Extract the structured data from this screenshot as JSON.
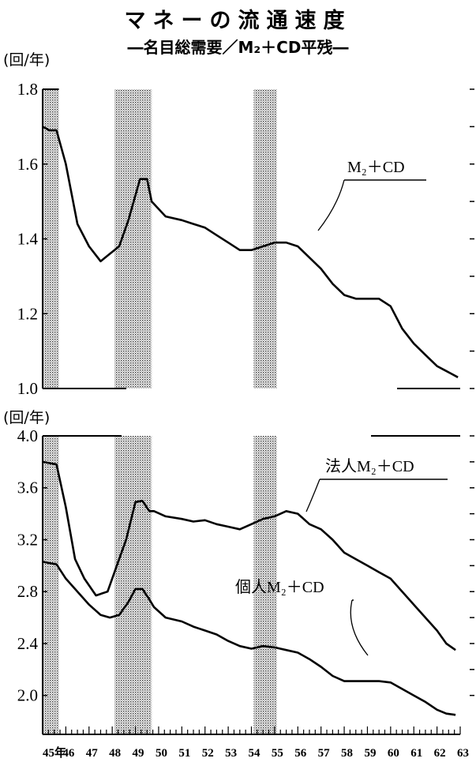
{
  "header": {
    "title": "マネーの流通速度",
    "subtitle": "―名目総需要／M₂＋CD平残―"
  },
  "chart_data": [
    {
      "type": "line",
      "unit_label": "(回/年)",
      "ylim": [
        1.0,
        1.8
      ],
      "yticks": [
        "1.8",
        "1.6",
        "1.4",
        "1.2",
        "1.0"
      ],
      "xlim": [
        45,
        63
      ],
      "x_tick_labels": [
        "45年",
        "46",
        "47",
        "48",
        "49",
        "50",
        "51",
        "52",
        "53",
        "54",
        "55",
        "56",
        "57",
        "58",
        "59",
        "60",
        "61",
        "62",
        "63"
      ],
      "shaded_periods": [
        [
          45.0,
          45.7
        ],
        [
          48.1,
          49.7
        ],
        [
          54.1,
          55.1
        ]
      ],
      "series": [
        {
          "name": "M₂＋CD",
          "x": [
            45.0,
            45.3,
            45.6,
            46.0,
            46.5,
            47.0,
            47.5,
            47.9,
            48.3,
            48.7,
            49.2,
            49.5,
            49.7,
            50.3,
            51.0,
            51.5,
            52.0,
            52.5,
            53.0,
            53.5,
            54.0,
            54.5,
            55.0,
            55.5,
            56.0,
            56.5,
            57.0,
            57.5,
            58.0,
            58.5,
            59.0,
            59.5,
            60.0,
            60.5,
            61.0,
            61.5,
            62.0,
            62.3,
            62.6,
            62.9
          ],
          "values": [
            1.7,
            1.69,
            1.69,
            1.6,
            1.44,
            1.38,
            1.34,
            1.36,
            1.38,
            1.45,
            1.56,
            1.56,
            1.5,
            1.46,
            1.45,
            1.44,
            1.43,
            1.41,
            1.39,
            1.37,
            1.37,
            1.38,
            1.39,
            1.39,
            1.38,
            1.35,
            1.32,
            1.28,
            1.25,
            1.24,
            1.24,
            1.24,
            1.22,
            1.16,
            1.12,
            1.09,
            1.06,
            1.05,
            1.04,
            1.03
          ]
        }
      ]
    },
    {
      "type": "line",
      "unit_label": "(回/年)",
      "ylim": [
        1.7,
        4.0
      ],
      "yticks": [
        "4.0",
        "3.6",
        "3.2",
        "2.8",
        "2.4",
        "2.0"
      ],
      "xlim": [
        45,
        63
      ],
      "x_tick_labels": [
        "45年",
        "46",
        "47",
        "48",
        "49",
        "50",
        "51",
        "52",
        "53",
        "54",
        "55",
        "56",
        "57",
        "58",
        "59",
        "60",
        "61",
        "62",
        "63"
      ],
      "shaded_periods": [
        [
          45.0,
          45.7
        ],
        [
          48.1,
          49.7
        ],
        [
          54.1,
          55.1
        ]
      ],
      "series": [
        {
          "name": "法人M₂＋CD",
          "x": [
            45.0,
            45.3,
            45.6,
            46.0,
            46.4,
            46.8,
            47.3,
            47.8,
            48.2,
            48.6,
            49.0,
            49.3,
            49.6,
            49.8,
            50.3,
            51.0,
            51.5,
            52.0,
            52.5,
            53.0,
            53.5,
            54.0,
            54.5,
            55.0,
            55.5,
            56.0,
            56.5,
            57.0,
            57.5,
            58.0,
            58.5,
            59.0,
            59.5,
            60.0,
            60.5,
            61.0,
            61.5,
            62.0,
            62.4,
            62.8
          ],
          "values": [
            3.8,
            3.79,
            3.78,
            3.45,
            3.05,
            2.9,
            2.77,
            2.8,
            3.0,
            3.2,
            3.49,
            3.5,
            3.42,
            3.42,
            3.38,
            3.36,
            3.34,
            3.35,
            3.32,
            3.3,
            3.28,
            3.32,
            3.36,
            3.38,
            3.42,
            3.4,
            3.32,
            3.28,
            3.2,
            3.1,
            3.05,
            3.0,
            2.95,
            2.9,
            2.8,
            2.7,
            2.6,
            2.5,
            2.4,
            2.35
          ]
        },
        {
          "name": "個人M₂＋CD",
          "x": [
            45.0,
            45.3,
            45.6,
            46.0,
            46.5,
            47.0,
            47.5,
            47.9,
            48.3,
            48.7,
            49.0,
            49.3,
            49.6,
            49.8,
            50.3,
            51.0,
            51.5,
            52.0,
            52.5,
            53.0,
            53.5,
            54.0,
            54.5,
            55.0,
            55.5,
            56.0,
            56.5,
            57.0,
            57.5,
            58.0,
            58.5,
            59.0,
            59.5,
            60.0,
            60.5,
            61.0,
            61.5,
            62.0,
            62.4,
            62.8
          ],
          "values": [
            3.03,
            3.02,
            3.01,
            2.9,
            2.8,
            2.7,
            2.62,
            2.6,
            2.62,
            2.72,
            2.82,
            2.82,
            2.74,
            2.68,
            2.6,
            2.57,
            2.53,
            2.5,
            2.47,
            2.42,
            2.38,
            2.36,
            2.38,
            2.37,
            2.35,
            2.33,
            2.28,
            2.22,
            2.15,
            2.11,
            2.11,
            2.11,
            2.11,
            2.1,
            2.05,
            2.0,
            1.95,
            1.89,
            1.86,
            1.85
          ]
        }
      ]
    }
  ]
}
